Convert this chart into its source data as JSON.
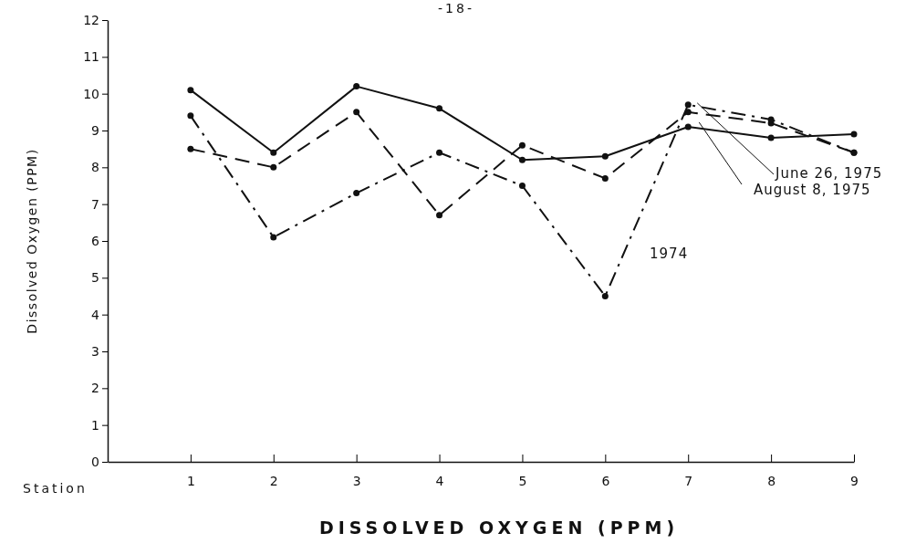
{
  "chart_data": {
    "type": "line",
    "xlabel": "DISSOLVED OXYGEN (PPM)",
    "ylabel": "Dissolved Oxygen (PPM)",
    "x": [
      1,
      2,
      3,
      4,
      5,
      6,
      7,
      8,
      9
    ],
    "xlim": [
      0,
      9
    ],
    "xticks": [
      1,
      2,
      3,
      4,
      5,
      6,
      7,
      8,
      9
    ],
    "ylim": [
      0,
      12
    ],
    "yticks": [
      0,
      1,
      2,
      3,
      4,
      5,
      6,
      7,
      8,
      9,
      10,
      11,
      12
    ],
    "marker": "circle",
    "grid": false,
    "legend": false,
    "series": [
      {
        "name": "June 26, 1975",
        "color": "#111111",
        "line_style": "dashed",
        "values": [
          8.5,
          8.0,
          9.5,
          6.7,
          8.6,
          7.7,
          9.5,
          9.2,
          8.4
        ]
      },
      {
        "name": "August 8, 1975",
        "color": "#111111",
        "line_style": "solid",
        "values": [
          10.1,
          8.4,
          10.2,
          9.6,
          8.2,
          8.3,
          9.1,
          8.8,
          8.9
        ]
      },
      {
        "name": "1974",
        "color": "#111111",
        "line_style": "dashdot",
        "values": [
          9.4,
          6.1,
          7.3,
          8.4,
          7.5,
          4.5,
          9.7,
          9.3,
          8.4
        ]
      }
    ],
    "annotations": [
      "-18-",
      "Station"
    ]
  }
}
